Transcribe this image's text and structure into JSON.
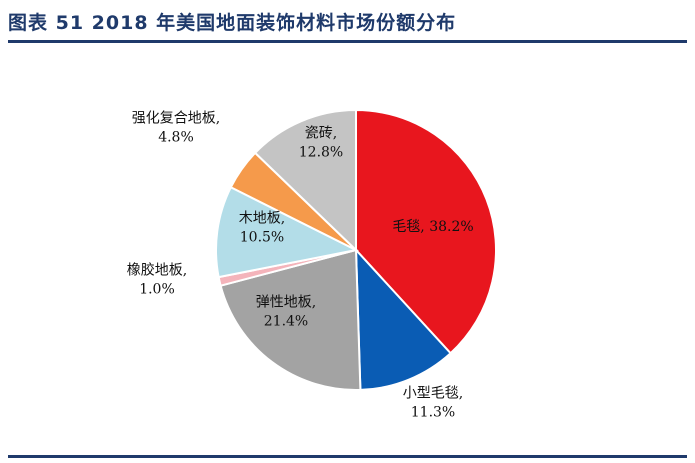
{
  "header": {
    "figure_title": "图表 51   2018 年美国地面装饰材料市场份额分布"
  },
  "chart_data": {
    "type": "pie",
    "title": "图表 51   2018 年美国地面装饰材料市场份额分布",
    "start_angle_deg": 0,
    "direction": "clockwise",
    "slices": [
      {
        "name": "毛毯",
        "value": 38.2,
        "value_label": "38.2%",
        "color": "#e8161e",
        "label_lines": [
          "毛毯, 38.2%"
        ]
      },
      {
        "name": "小型毛毯",
        "value": 11.3,
        "value_label": "11.3%",
        "color": "#0a5cb4",
        "label_lines": [
          "小型毛毯,",
          "11.3%"
        ]
      },
      {
        "name": "弹性地板",
        "value": 21.4,
        "value_label": "21.4%",
        "color": "#a3a3a3",
        "label_lines": [
          "弹性地板,",
          "21.4%"
        ]
      },
      {
        "name": "橡胶地板",
        "value": 1.0,
        "value_label": "1.0%",
        "color": "#f4b4bb",
        "label_lines": [
          "橡胶地板,",
          "1.0%"
        ]
      },
      {
        "name": "木地板",
        "value": 10.5,
        "value_label": "10.5%",
        "color": "#b3dde8",
        "label_lines": [
          "木地板,",
          "10.5%"
        ]
      },
      {
        "name": "强化复合地板",
        "value": 4.8,
        "value_label": "4.8%",
        "color": "#f59a4b",
        "label_lines": [
          "强化复合地板,",
          "4.8%"
        ]
      },
      {
        "name": "瓷砖",
        "value": 12.8,
        "value_label": "12.8%",
        "color": "#c4c4c4",
        "label_lines": [
          "瓷砖,",
          "12.8%"
        ]
      }
    ]
  }
}
